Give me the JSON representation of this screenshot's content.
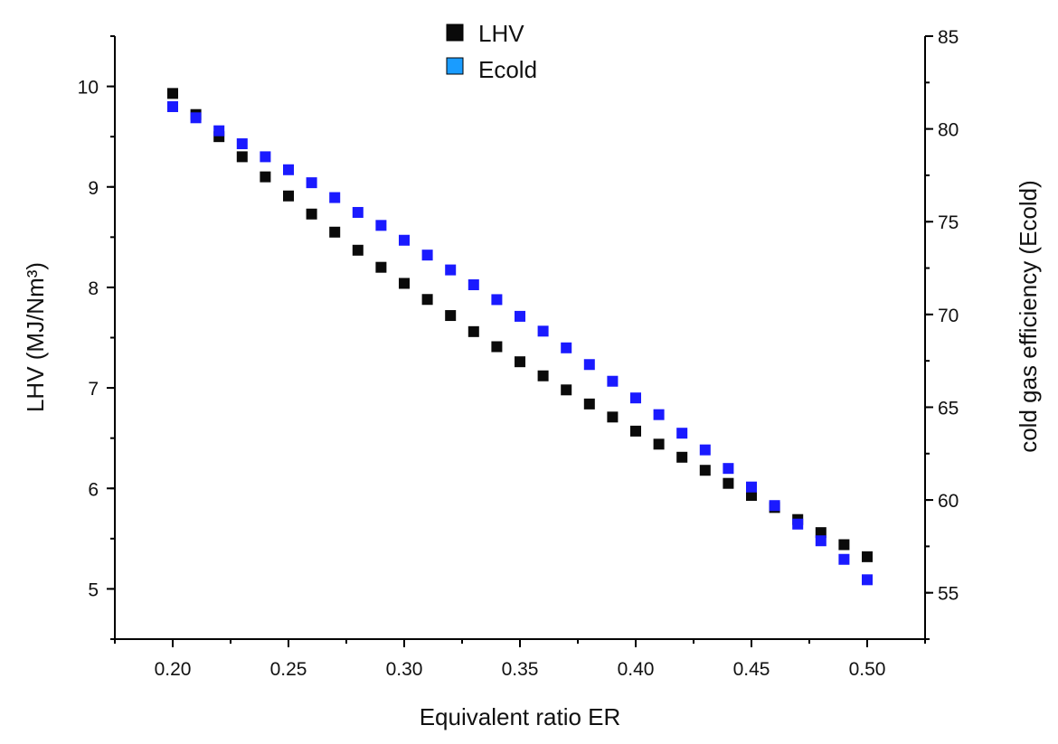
{
  "chart_data": {
    "type": "scatter",
    "x": [
      0.2,
      0.21,
      0.22,
      0.23,
      0.24,
      0.25,
      0.26,
      0.27,
      0.28,
      0.29,
      0.3,
      0.31,
      0.32,
      0.33,
      0.34,
      0.35,
      0.36,
      0.37,
      0.38,
      0.39,
      0.4,
      0.41,
      0.42,
      0.43,
      0.44,
      0.45,
      0.46,
      0.47,
      0.48,
      0.49,
      0.5
    ],
    "series": [
      {
        "name": "LHV",
        "axis": "left",
        "color": "#0a0a0a",
        "values": [
          9.93,
          9.72,
          9.5,
          9.3,
          9.1,
          8.91,
          8.73,
          8.55,
          8.37,
          8.2,
          8.04,
          7.88,
          7.72,
          7.56,
          7.41,
          7.26,
          7.12,
          6.98,
          6.84,
          6.71,
          6.57,
          6.44,
          6.31,
          6.18,
          6.05,
          5.93,
          5.81,
          5.69,
          5.56,
          5.44,
          5.32
        ]
      },
      {
        "name": "Ecold",
        "axis": "right",
        "color": "#1a1aff",
        "values": [
          81.2,
          80.6,
          79.9,
          79.2,
          78.5,
          77.8,
          77.1,
          76.3,
          75.5,
          74.8,
          74.0,
          73.2,
          72.4,
          71.6,
          70.8,
          69.9,
          69.1,
          68.2,
          67.3,
          66.4,
          65.5,
          64.6,
          63.6,
          62.7,
          61.7,
          60.7,
          59.7,
          58.7,
          57.8,
          56.8,
          55.7
        ]
      }
    ],
    "xlabel": "Equivalent ratio ER",
    "ylabel": "LHV  (MJ/Nm³)",
    "y2label": "cold gas efficiency (Ecold)",
    "xlim": [
      0.175,
      0.525
    ],
    "ylim": [
      4.5,
      10.5
    ],
    "y2lim": [
      52.5,
      85
    ],
    "xticks": [
      "0.20",
      "0.25",
      "0.30",
      "0.35",
      "0.40",
      "0.45",
      "0.50"
    ],
    "yticks": [
      "5",
      "6",
      "7",
      "8",
      "9",
      "10"
    ],
    "y2ticks": [
      "55",
      "60",
      "65",
      "70",
      "75",
      "80",
      "85"
    ],
    "grid": false,
    "legend": {
      "position": "top-center",
      "entries": [
        {
          "label": "LHV",
          "color": "#0a0a0a"
        },
        {
          "label": "Ecold",
          "color": "#1a9cff"
        }
      ]
    }
  }
}
